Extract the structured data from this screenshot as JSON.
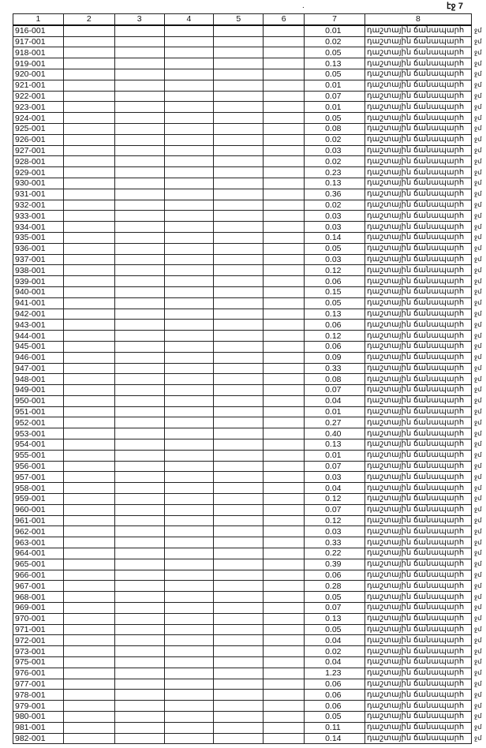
{
  "page_label": "էջ 7",
  "mark": ".",
  "headers": [
    "1",
    "2",
    "3",
    "4",
    "5",
    "6",
    "7",
    "8"
  ],
  "rows": [
    [
      "916-001",
      "0.01"
    ],
    [
      "917-001",
      "0.02"
    ],
    [
      "918-001",
      "0.05"
    ],
    [
      "919-001",
      "0.13"
    ],
    [
      "920-001",
      "0.05"
    ],
    [
      "921-001",
      "0.01"
    ],
    [
      "922-001",
      "0.07"
    ],
    [
      "923-001",
      "0.01"
    ],
    [
      "924-001",
      "0.05"
    ],
    [
      "925-001",
      "0.08"
    ],
    [
      "926-001",
      "0.02"
    ],
    [
      "927-001",
      "0.03"
    ],
    [
      "928-001",
      "0.02"
    ],
    [
      "929-001",
      "0.23"
    ],
    [
      "930-001",
      "0.13"
    ],
    [
      "931-001",
      "0.36"
    ],
    [
      "932-001",
      "0.02"
    ],
    [
      "933-001",
      "0.03"
    ],
    [
      "934-001",
      "0.03"
    ],
    [
      "935-001",
      "0.14"
    ],
    [
      "936-001",
      "0.05"
    ],
    [
      "937-001",
      "0.03"
    ],
    [
      "938-001",
      "0.12"
    ],
    [
      "939-001",
      "0.06"
    ],
    [
      "940-001",
      "0.15"
    ],
    [
      "941-001",
      "0.05"
    ],
    [
      "942-001",
      "0.13"
    ],
    [
      "943-001",
      "0.06"
    ],
    [
      "944-001",
      "0.12"
    ],
    [
      "945-001",
      "0.06"
    ],
    [
      "946-001",
      "0.09"
    ],
    [
      "947-001",
      "0.33"
    ],
    [
      "948-001",
      "0.08"
    ],
    [
      "949-001",
      "0.07"
    ],
    [
      "950-001",
      "0.04"
    ],
    [
      "951-001",
      "0.01"
    ],
    [
      "952-001",
      "0.27"
    ],
    [
      "953-001",
      "0.40"
    ],
    [
      "954-001",
      "0.13"
    ],
    [
      "955-001",
      "0.01"
    ],
    [
      "956-001",
      "0.07"
    ],
    [
      "957-001",
      "0.03"
    ],
    [
      "958-001",
      "0.04"
    ],
    [
      "959-001",
      "0.12"
    ],
    [
      "960-001",
      "0.07"
    ],
    [
      "961-001",
      "0.12"
    ],
    [
      "962-001",
      "0.03"
    ],
    [
      "963-001",
      "0.33"
    ],
    [
      "964-001",
      "0.22"
    ],
    [
      "965-001",
      "0.39"
    ],
    [
      "966-001",
      "0.06"
    ],
    [
      "967-001",
      "0.28"
    ],
    [
      "968-001",
      "0.05"
    ],
    [
      "969-001",
      "0.07"
    ],
    [
      "970-001",
      "0.13"
    ],
    [
      "971-001",
      "0.05"
    ],
    [
      "972-001",
      "0.04"
    ],
    [
      "973-001",
      "0.02"
    ],
    [
      "975-001",
      "0.04"
    ],
    [
      "976-001",
      "1.23"
    ],
    [
      "977-001",
      "0.06"
    ],
    [
      "978-001",
      "0.06"
    ],
    [
      "979-001",
      "0.06"
    ],
    [
      "980-001",
      "0.05"
    ],
    [
      "981-001",
      "0.11"
    ],
    [
      "982-001",
      "0.14"
    ]
  ],
  "row_type": "դաշտային ճանապարհ",
  "margin_fragment": "ջմ"
}
